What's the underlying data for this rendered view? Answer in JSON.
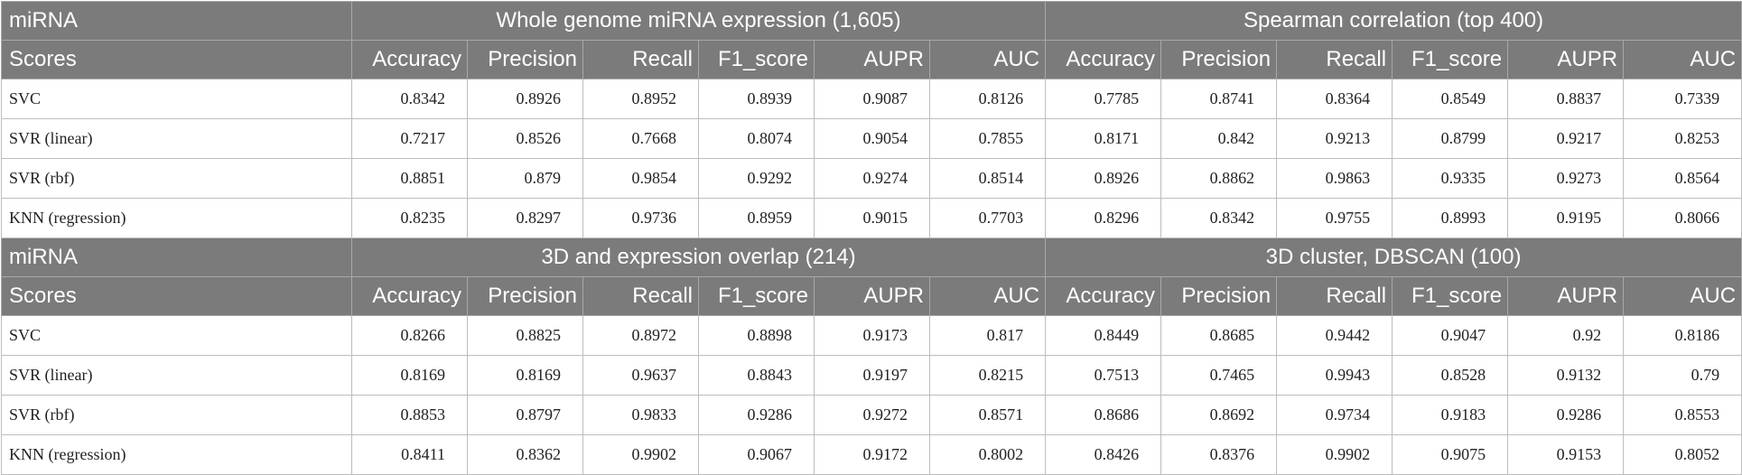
{
  "blocks": [
    {
      "corner_label": "miRNA",
      "scores_label": "Scores",
      "group_a": "Whole genome miRNA expression (1,605)",
      "group_b": "Spearman correlation (top 400)",
      "metrics": [
        "Accuracy",
        "Precision",
        "Recall",
        "F1_score",
        "AUPR",
        "AUC"
      ],
      "rows": [
        {
          "model": "SVC",
          "a": [
            "0.8342",
            "0.8926",
            "0.8952",
            "0.8939",
            "0.9087",
            "0.8126"
          ],
          "b": [
            "0.7785",
            "0.8741",
            "0.8364",
            "0.8549",
            "0.8837",
            "0.7339"
          ]
        },
        {
          "model": "SVR (linear)",
          "a": [
            "0.7217",
            "0.8526",
            "0.7668",
            "0.8074",
            "0.9054",
            "0.7855"
          ],
          "b": [
            "0.8171",
            "0.842",
            "0.9213",
            "0.8799",
            "0.9217",
            "0.8253"
          ]
        },
        {
          "model": "SVR (rbf)",
          "a": [
            "0.8851",
            "0.879",
            "0.9854",
            "0.9292",
            "0.9274",
            "0.8514"
          ],
          "b": [
            "0.8926",
            "0.8862",
            "0.9863",
            "0.9335",
            "0.9273",
            "0.8564"
          ]
        },
        {
          "model": "KNN (regression)",
          "a": [
            "0.8235",
            "0.8297",
            "0.9736",
            "0.8959",
            "0.9015",
            "0.7703"
          ],
          "b": [
            "0.8296",
            "0.8342",
            "0.9755",
            "0.8993",
            "0.9195",
            "0.8066"
          ]
        }
      ]
    },
    {
      "corner_label": "miRNA",
      "scores_label": "Scores",
      "group_a": "3D and expression overlap (214)",
      "group_b": "3D cluster, DBSCAN (100)",
      "metrics": [
        "Accuracy",
        "Precision",
        "Recall",
        "F1_score",
        "AUPR",
        "AUC"
      ],
      "rows": [
        {
          "model": "SVC",
          "a": [
            "0.8266",
            "0.8825",
            "0.8972",
            "0.8898",
            "0.9173",
            "0.817"
          ],
          "b": [
            "0.8449",
            "0.8685",
            "0.9442",
            "0.9047",
            "0.92",
            "0.8186"
          ]
        },
        {
          "model": "SVR (linear)",
          "a": [
            "0.8169",
            "0.8169",
            "0.9637",
            "0.8843",
            "0.9197",
            "0.8215"
          ],
          "b": [
            "0.7513",
            "0.7465",
            "0.9943",
            "0.8528",
            "0.9132",
            "0.79"
          ]
        },
        {
          "model": "SVR (rbf)",
          "a": [
            "0.8853",
            "0.8797",
            "0.9833",
            "0.9286",
            "0.9272",
            "0.8571"
          ],
          "b": [
            "0.8686",
            "0.8692",
            "0.9734",
            "0.9183",
            "0.9286",
            "0.8553"
          ]
        },
        {
          "model": "KNN (regression)",
          "a": [
            "0.8411",
            "0.8362",
            "0.9902",
            "0.9067",
            "0.9172",
            "0.8002"
          ],
          "b": [
            "0.8426",
            "0.8376",
            "0.9902",
            "0.9075",
            "0.9153",
            "0.8052"
          ]
        }
      ]
    }
  ]
}
